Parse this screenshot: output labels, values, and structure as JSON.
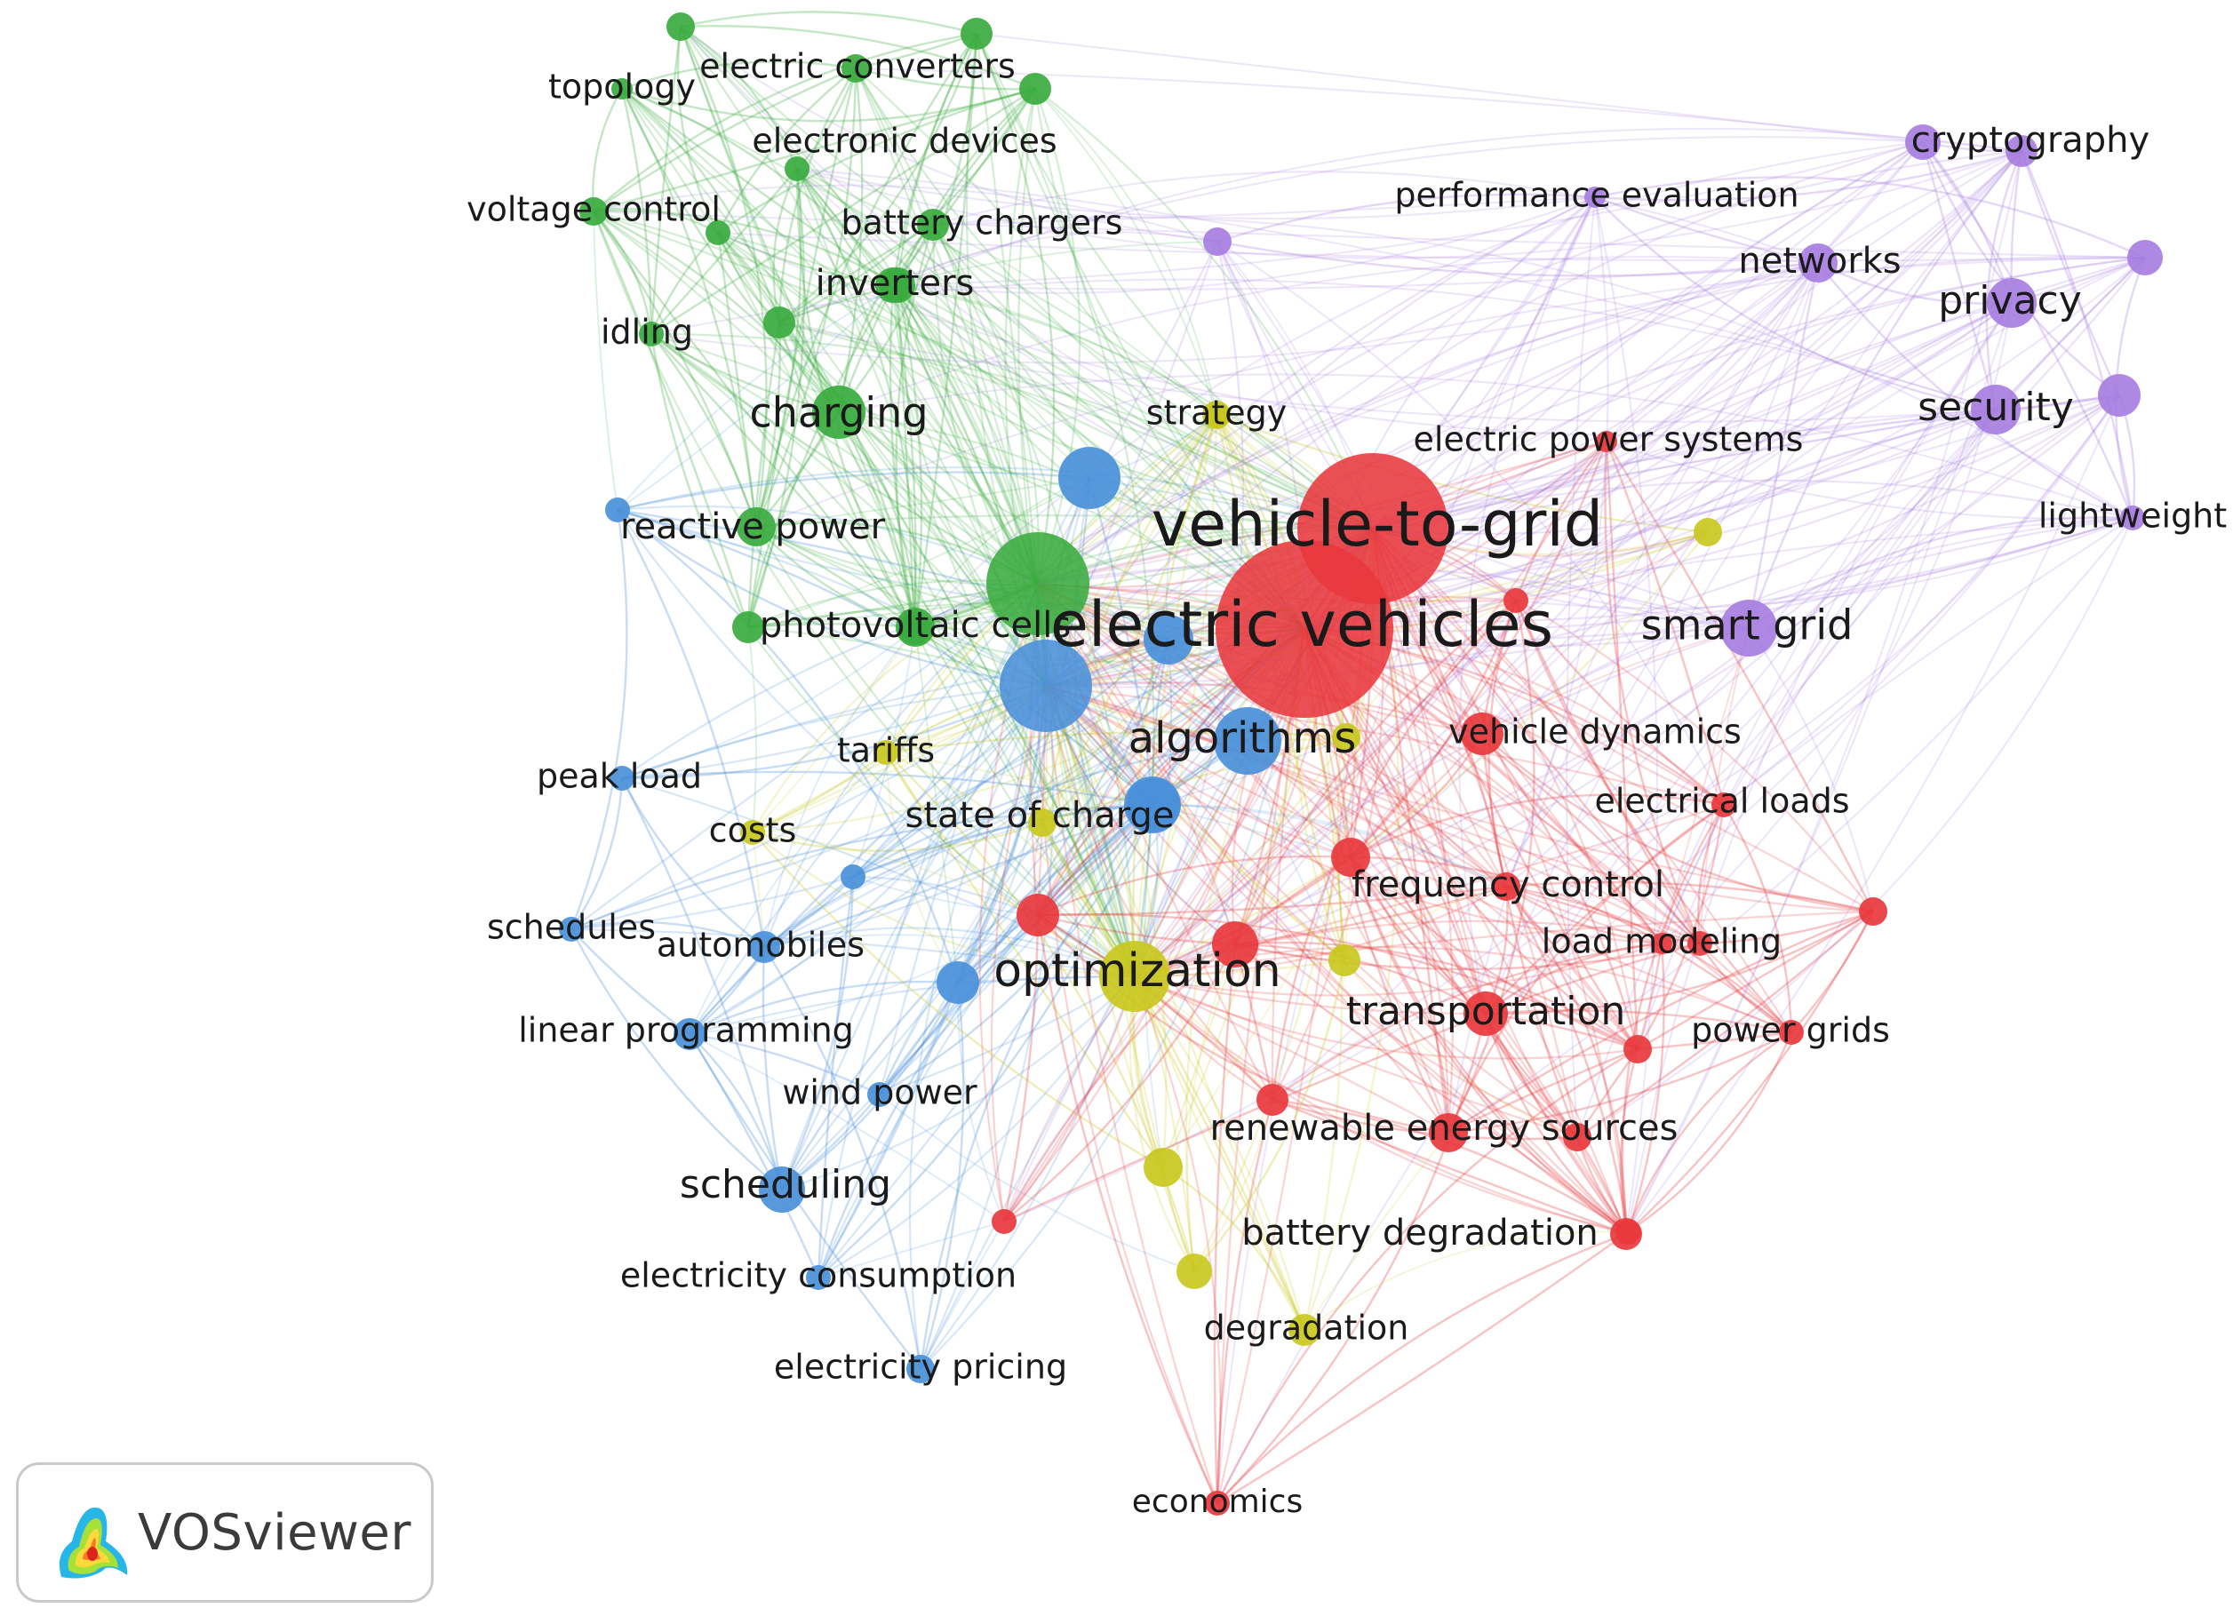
{
  "clusters": {
    "red": "#e8383d",
    "green": "#3aab3f",
    "blue": "#4a90d9",
    "yellow": "#c9c81e",
    "purple": "#a77ee0"
  },
  "keywords": [
    {
      "id": "vehicle-to-grid",
      "label": "vehicle-to-grid",
      "cluster": "red"
    },
    {
      "id": "electric-vehicles",
      "label": "electric vehicles",
      "cluster": "red"
    },
    {
      "id": "electric-power-systems",
      "label": "electric power systems",
      "cluster": "red"
    },
    {
      "id": "vehicle-dynamics",
      "label": "vehicle dynamics",
      "cluster": "red"
    },
    {
      "id": "electrical-loads",
      "label": "electrical loads",
      "cluster": "red"
    },
    {
      "id": "frequency-control",
      "label": "frequency control",
      "cluster": "red"
    },
    {
      "id": "load-modeling",
      "label": "load modeling",
      "cluster": "red"
    },
    {
      "id": "transportation",
      "label": "transportation",
      "cluster": "red"
    },
    {
      "id": "power-grids",
      "label": "power grids",
      "cluster": "red"
    },
    {
      "id": "renewable-energy-sources",
      "label": "renewable energy sources",
      "cluster": "red"
    },
    {
      "id": "battery-degradation",
      "label": "battery degradation",
      "cluster": "red"
    },
    {
      "id": "economics",
      "label": "economics",
      "cluster": "red"
    },
    {
      "id": "topology",
      "label": "topology",
      "cluster": "green"
    },
    {
      "id": "electric-converters",
      "label": "electric converters",
      "cluster": "green"
    },
    {
      "id": "electronic-devices",
      "label": "electronic devices",
      "cluster": "green"
    },
    {
      "id": "voltage-control",
      "label": "voltage control",
      "cluster": "green"
    },
    {
      "id": "battery-chargers",
      "label": "battery chargers",
      "cluster": "green"
    },
    {
      "id": "inverters",
      "label": "inverters",
      "cluster": "green"
    },
    {
      "id": "idling",
      "label": "idling",
      "cluster": "green"
    },
    {
      "id": "charging",
      "label": "charging",
      "cluster": "green"
    },
    {
      "id": "reactive-power",
      "label": "reactive power",
      "cluster": "green"
    },
    {
      "id": "photovoltaic-cells",
      "label": "photovoltaic cells",
      "cluster": "green"
    },
    {
      "id": "algorithms",
      "label": "algorithms",
      "cluster": "blue"
    },
    {
      "id": "peak-load",
      "label": "peak load",
      "cluster": "blue"
    },
    {
      "id": "state-of-charge",
      "label": "state of charge",
      "cluster": "blue"
    },
    {
      "id": "schedules",
      "label": "schedules",
      "cluster": "blue"
    },
    {
      "id": "automobiles",
      "label": "automobiles",
      "cluster": "blue"
    },
    {
      "id": "linear-programming",
      "label": "linear programming",
      "cluster": "blue"
    },
    {
      "id": "wind-power",
      "label": "wind power",
      "cluster": "blue"
    },
    {
      "id": "scheduling",
      "label": "scheduling",
      "cluster": "blue"
    },
    {
      "id": "electricity-consumption",
      "label": "electricity consumption",
      "cluster": "blue"
    },
    {
      "id": "electricity-pricing",
      "label": "electricity pricing",
      "cluster": "blue"
    },
    {
      "id": "strategy",
      "label": "strategy",
      "cluster": "yellow"
    },
    {
      "id": "tariffs",
      "label": "tariffs",
      "cluster": "yellow"
    },
    {
      "id": "costs",
      "label": "costs",
      "cluster": "yellow"
    },
    {
      "id": "optimization",
      "label": "optimization",
      "cluster": "yellow"
    },
    {
      "id": "degradation",
      "label": "degradation",
      "cluster": "yellow"
    },
    {
      "id": "cryptography",
      "label": "cryptography",
      "cluster": "purple"
    },
    {
      "id": "performance-evaluation",
      "label": "performance evaluation",
      "cluster": "purple"
    },
    {
      "id": "networks",
      "label": "networks",
      "cluster": "purple"
    },
    {
      "id": "privacy",
      "label": "privacy",
      "cluster": "purple"
    },
    {
      "id": "security",
      "label": "security",
      "cluster": "purple"
    },
    {
      "id": "lightweight",
      "label": "lightweight",
      "cluster": "purple"
    },
    {
      "id": "smart-grid",
      "label": "smart grid",
      "cluster": "purple"
    }
  ],
  "logo": {
    "text": "VOSviewer"
  }
}
